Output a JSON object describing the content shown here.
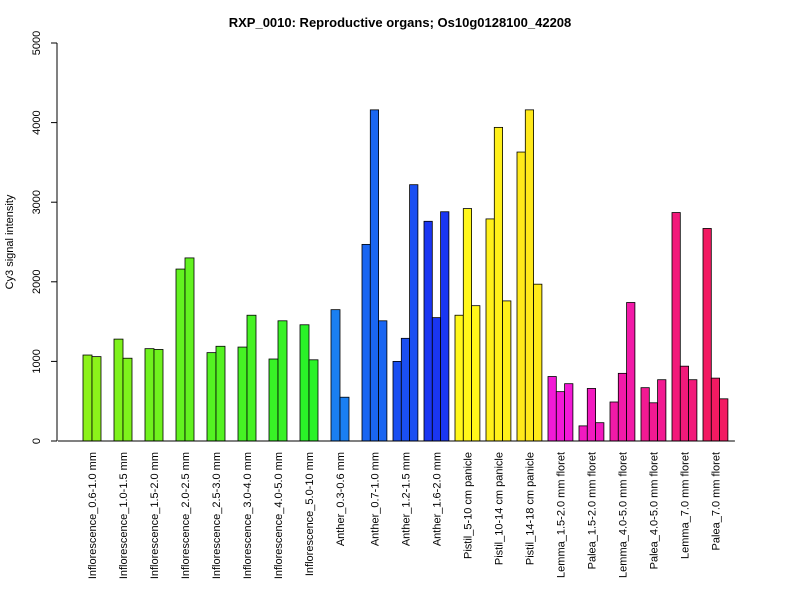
{
  "chart_data": {
    "type": "bar",
    "title": "RXP_0010: Reproductive organs; Os10g0128100_42208",
    "xlabel": "",
    "ylabel": "Cy3 signal intensity",
    "ylim": [
      0,
      5000
    ],
    "yticks": [
      0,
      1000,
      2000,
      3000,
      4000,
      5000
    ],
    "grid": false,
    "categories": [
      {
        "label": "Inflorescence_0.6-1.0 mm",
        "values": [
          1080,
          1060
        ],
        "colors": [
          "#8cf21a",
          "#8cf21a"
        ]
      },
      {
        "label": "Inflorescence_1.0-1.5 mm",
        "values": [
          1280,
          1040
        ],
        "colors": [
          "#7ef21c",
          "#7ef21c"
        ]
      },
      {
        "label": "Inflorescence_1.5-2.0 mm",
        "values": [
          1160,
          1150
        ],
        "colors": [
          "#70f21e",
          "#70f21e"
        ]
      },
      {
        "label": "Inflorescence_2.0-2.5 mm",
        "values": [
          2160,
          2300
        ],
        "colors": [
          "#62f220",
          "#62f220"
        ]
      },
      {
        "label": "Inflorescence_2.5-3.0 mm",
        "values": [
          1110,
          1190
        ],
        "colors": [
          "#54f222",
          "#54f222"
        ]
      },
      {
        "label": "Inflorescence_3.0-4.0 mm",
        "values": [
          1180,
          1580
        ],
        "colors": [
          "#46f224",
          "#46f224"
        ]
      },
      {
        "label": "Inflorescence_4.0-5.0 mm",
        "values": [
          1030,
          1510
        ],
        "colors": [
          "#38f226",
          "#38f226"
        ]
      },
      {
        "label": "Inflorescence_5.0-10 mm",
        "values": [
          1460,
          1020
        ],
        "colors": [
          "#2af228",
          "#2af228"
        ]
      },
      {
        "label": "Anther_0.3-0.6 mm",
        "values": [
          1650,
          550
        ],
        "colors": [
          "#1a7ff2",
          "#1a7ff2"
        ]
      },
      {
        "label": "Anther_0.7-1.0 mm",
        "values": [
          2470,
          4160,
          1510
        ],
        "colors": [
          "#1a66f2",
          "#1a66f2",
          "#1a66f2"
        ]
      },
      {
        "label": "Anther_1.2-1.5 mm",
        "values": [
          1000,
          1290,
          3220
        ],
        "colors": [
          "#1a4ff2",
          "#1a4ff2",
          "#1a4ff2"
        ]
      },
      {
        "label": "Anther_1.6-2.0 mm",
        "values": [
          2760,
          1550,
          2880
        ],
        "colors": [
          "#1a36f2",
          "#1a36f2",
          "#1a36f2"
        ]
      },
      {
        "label": "Pistil_5-10 cm panicle",
        "values": [
          1580,
          2920,
          1700
        ],
        "colors": [
          "#fff71a",
          "#fff71a",
          "#fff71a"
        ]
      },
      {
        "label": "Pistil_10-14 cm panicle",
        "values": [
          2790,
          3940,
          1760
        ],
        "colors": [
          "#fff01a",
          "#fff01a",
          "#fff01a"
        ]
      },
      {
        "label": "Pistil_14-18 cm panicle",
        "values": [
          3630,
          4160,
          1970
        ],
        "colors": [
          "#ffe91a",
          "#ffe91a",
          "#ffe91a"
        ]
      },
      {
        "label": "Lemma_1.5-2.0 mm floret",
        "values": [
          810,
          620,
          720
        ],
        "colors": [
          "#f21ad6",
          "#f21ad6",
          "#f21ad6"
        ]
      },
      {
        "label": "Palea_1.5-2.0 mm floret",
        "values": [
          190,
          660,
          230
        ],
        "colors": [
          "#f21ac0",
          "#f21ac0",
          "#f21ac0"
        ]
      },
      {
        "label": "Lemma_4.0-5.0 mm floret",
        "values": [
          490,
          850,
          1740
        ],
        "colors": [
          "#f21aa8",
          "#f21aa8",
          "#f21aa8"
        ]
      },
      {
        "label": "Palea_4.0-5.0 mm floret",
        "values": [
          670,
          480,
          770
        ],
        "colors": [
          "#f21a92",
          "#f21a92",
          "#f21a92"
        ]
      },
      {
        "label": "Lemma_7.0 mm floret",
        "values": [
          2870,
          940,
          770
        ],
        "colors": [
          "#f21a7a",
          "#f21a7a",
          "#f21a7a"
        ]
      },
      {
        "label": "Palea_7.0 mm floret",
        "values": [
          2670,
          790,
          530
        ],
        "colors": [
          "#f21a62",
          "#f21a62",
          "#f21a62"
        ]
      }
    ]
  }
}
